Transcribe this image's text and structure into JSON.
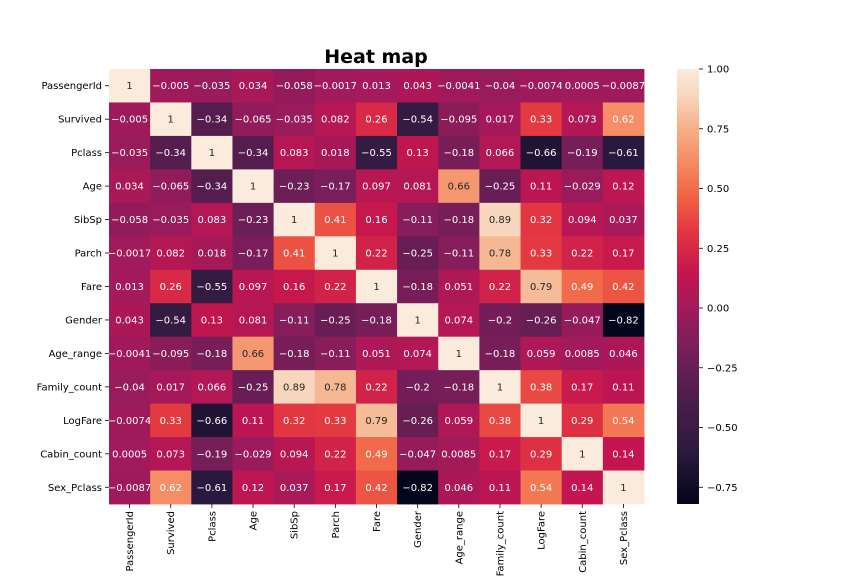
{
  "chart_data": {
    "type": "heatmap",
    "title": "Heat map",
    "variables": [
      "PassengerId",
      "Survived",
      "Pclass",
      "Age",
      "SibSp",
      "Parch",
      "Fare",
      "Gender",
      "Age_range",
      "Family_count",
      "LogFare",
      "Cabin_count",
      "Sex_Pclass"
    ],
    "values": [
      [
        1,
        -0.005,
        -0.035,
        0.034,
        -0.058,
        -0.0017,
        0.013,
        0.043,
        -0.0041,
        -0.04,
        -0.0074,
        0.0005,
        -0.0087
      ],
      [
        -0.005,
        1,
        -0.34,
        -0.065,
        -0.035,
        0.082,
        0.26,
        -0.54,
        -0.095,
        0.017,
        0.33,
        0.073,
        0.62
      ],
      [
        -0.035,
        -0.34,
        1,
        -0.34,
        0.083,
        0.018,
        -0.55,
        0.13,
        -0.18,
        0.066,
        -0.66,
        -0.19,
        -0.61
      ],
      [
        0.034,
        -0.065,
        -0.34,
        1,
        -0.23,
        -0.17,
        0.097,
        0.081,
        0.66,
        -0.25,
        0.11,
        -0.029,
        0.12
      ],
      [
        -0.058,
        -0.035,
        0.083,
        -0.23,
        1,
        0.41,
        0.16,
        -0.11,
        -0.18,
        0.89,
        0.32,
        0.094,
        0.037
      ],
      [
        -0.0017,
        0.082,
        0.018,
        -0.17,
        0.41,
        1,
        0.22,
        -0.25,
        -0.11,
        0.78,
        0.33,
        0.22,
        0.17
      ],
      [
        0.013,
        0.26,
        -0.55,
        0.097,
        0.16,
        0.22,
        1,
        -0.18,
        0.051,
        0.22,
        0.79,
        0.49,
        0.42
      ],
      [
        0.043,
        -0.54,
        0.13,
        0.081,
        -0.11,
        -0.25,
        -0.18,
        1,
        0.074,
        -0.2,
        -0.26,
        -0.047,
        -0.82
      ],
      [
        -0.0041,
        -0.095,
        -0.18,
        0.66,
        -0.18,
        -0.11,
        0.051,
        0.074,
        1,
        -0.18,
        0.059,
        0.0085,
        0.046
      ],
      [
        -0.04,
        0.017,
        0.066,
        -0.25,
        0.89,
        0.78,
        0.22,
        -0.2,
        -0.18,
        1,
        0.38,
        0.17,
        0.11
      ],
      [
        -0.0074,
        0.33,
        -0.66,
        0.11,
        0.32,
        0.33,
        0.79,
        -0.26,
        0.059,
        0.38,
        1,
        0.29,
        0.54
      ],
      [
        0.0005,
        0.073,
        -0.19,
        -0.029,
        0.094,
        0.22,
        0.49,
        -0.047,
        0.0085,
        0.17,
        0.29,
        1,
        0.14
      ],
      [
        -0.0087,
        0.62,
        -0.61,
        0.12,
        0.037,
        0.17,
        0.42,
        -0.82,
        0.046,
        0.11,
        0.54,
        0.14,
        1
      ]
    ],
    "colorbar": {
      "range": [
        -0.82,
        1.0
      ],
      "ticks": [
        1.0,
        0.75,
        0.5,
        0.25,
        0.0,
        -0.25,
        -0.5,
        -0.75
      ],
      "tick_labels": [
        "1.00",
        "0.75",
        "0.50",
        "0.25",
        "0.00",
        "−0.25",
        "−0.50",
        "−0.75"
      ],
      "colormap": "rocket"
    },
    "annotated": true,
    "grid": false,
    "legend": "colorbar right"
  }
}
